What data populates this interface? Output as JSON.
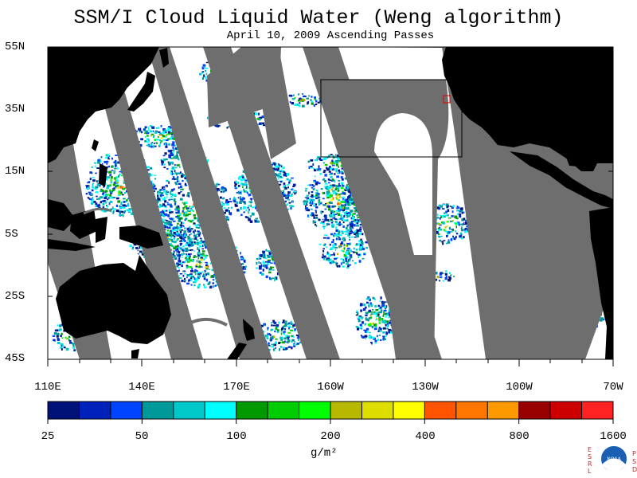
{
  "title": "SSM/I Cloud Liquid Water (Weng algorithm)",
  "subtitle": "April 10, 2009  Ascending Passes",
  "y_labels": [
    "55N",
    "35N",
    "15N",
    "5S",
    "25S",
    "45S"
  ],
  "x_labels": [
    "110E",
    "140E",
    "170E",
    "160W",
    "130W",
    "100W",
    "70W"
  ],
  "colorbar": {
    "colors": [
      "#001177",
      "#0022bb",
      "#0044ff",
      "#00999a",
      "#00c8c8",
      "#00ffff",
      "#009900",
      "#00cc00",
      "#00ff00",
      "#b8b800",
      "#dddd00",
      "#ffff00",
      "#ff5500",
      "#ff7700",
      "#ff9900",
      "#990000",
      "#cc0000",
      "#ff2222"
    ],
    "tick_labels": [
      "25",
      "50",
      "100",
      "200",
      "400",
      "800",
      "1600"
    ]
  },
  "units": "g/m²",
  "logo": {
    "left_letters": "ESRL",
    "right_letters": "PSD",
    "center_text": "NOAA"
  },
  "colors": {
    "land": "#000000",
    "swath_gap": "#6e6e6e",
    "ocean_clear": "#ffffff"
  }
}
